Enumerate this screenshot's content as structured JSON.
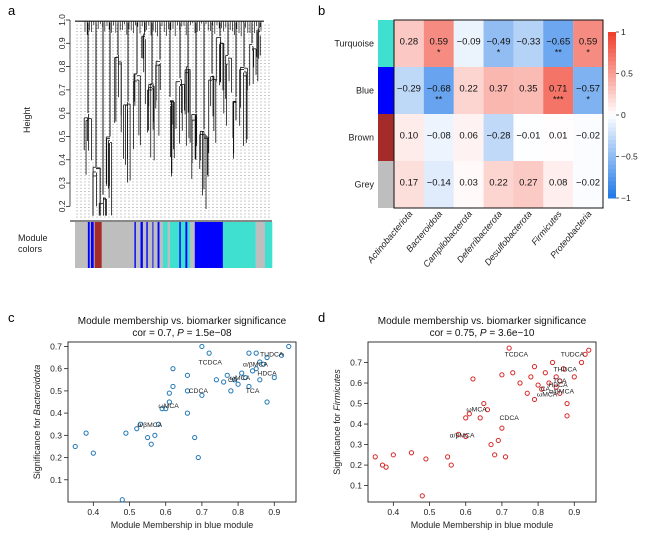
{
  "panel_labels": {
    "a": "a",
    "b": "b",
    "c": "c",
    "d": "d"
  },
  "colors": {
    "turquoise": "#40e0d0",
    "blue": "#0000ff",
    "brown": "#a52a2a",
    "grey": "#bebebe",
    "scatter_c": "#1f77b4",
    "scatter_d": "#d62728",
    "heat_neg": "#1f78e6",
    "heat_pos": "#f03c2a"
  },
  "panel_a": {
    "ylabel": "Height",
    "yticks": [
      "1.0",
      "0.9",
      "0.8",
      "0.7",
      "0.6",
      "0.5",
      "0.4",
      "0.3",
      "0.2"
    ],
    "module_label_line1": "Module",
    "module_label_line2": "colors",
    "module_bar": [
      {
        "color": "grey",
        "w": 0.055
      },
      {
        "color": "blue",
        "w": 0.008
      },
      {
        "color": "grey",
        "w": 0.005
      },
      {
        "color": "blue",
        "w": 0.012
      },
      {
        "color": "grey",
        "w": 0.004
      },
      {
        "color": "brown",
        "w": 0.03
      },
      {
        "color": "grey",
        "w": 0.14
      },
      {
        "color": "blue",
        "w": 0.006
      },
      {
        "color": "grey",
        "w": 0.02
      },
      {
        "color": "blue",
        "w": 0.01
      },
      {
        "color": "grey",
        "w": 0.015
      },
      {
        "color": "blue",
        "w": 0.006
      },
      {
        "color": "grey",
        "w": 0.02
      },
      {
        "color": "blue",
        "w": 0.004
      },
      {
        "color": "grey",
        "w": 0.018
      },
      {
        "color": "blue",
        "w": 0.008
      },
      {
        "color": "grey",
        "w": 0.015
      },
      {
        "color": "turquoise",
        "w": 0.02
      },
      {
        "color": "grey",
        "w": 0.01
      },
      {
        "color": "turquoise",
        "w": 0.04
      },
      {
        "color": "blue",
        "w": 0.006
      },
      {
        "color": "turquoise",
        "w": 0.02
      },
      {
        "color": "blue",
        "w": 0.008
      },
      {
        "color": "turquoise",
        "w": 0.012
      },
      {
        "color": "grey",
        "w": 0.02
      },
      {
        "color": "blue",
        "w": 0.12
      },
      {
        "color": "turquoise",
        "w": 0.14
      },
      {
        "color": "grey",
        "w": 0.04
      },
      {
        "color": "turquoise",
        "w": 0.03
      }
    ]
  },
  "chart_data": [
    {
      "type": "heatmap",
      "panel": "b",
      "rows": [
        "Turquoise",
        "Blue",
        "Brown",
        "Grey"
      ],
      "row_colors": [
        "turquoise",
        "blue",
        "brown",
        "grey"
      ],
      "columns": [
        "Actinobacteriota",
        "Bacteroidota",
        "Campilobacterota",
        "Deferribacterota",
        "Desulfobacterota",
        "Firmicutes",
        "Proteobacteria"
      ],
      "values": [
        [
          0.28,
          0.59,
          -0.09,
          -0.49,
          -0.33,
          -0.65,
          0.59
        ],
        [
          -0.29,
          -0.68,
          0.22,
          0.37,
          0.35,
          0.71,
          -0.57
        ],
        [
          0.1,
          -0.08,
          0.06,
          -0.28,
          -0.01,
          0.01,
          -0.02
        ],
        [
          0.17,
          -0.14,
          0.03,
          0.22,
          0.27,
          0.08,
          -0.02
        ]
      ],
      "labels": [
        [
          "0.28",
          "0.59",
          "−0.09",
          "−0.49",
          "−0.33",
          "−0.65",
          "0.59"
        ],
        [
          "−0.29",
          "−0.68",
          "0.22",
          "0.37",
          "0.35",
          "0.71",
          "−0.57"
        ],
        [
          "0.10",
          "−0.08",
          "0.06",
          "−0.28",
          "−0.01",
          "0.01",
          "−0.02"
        ],
        [
          "0.17",
          "−0.14",
          "0.03",
          "0.22",
          "0.27",
          "0.08",
          "−0.02"
        ]
      ],
      "stars": [
        [
          "",
          "*",
          "",
          "*",
          "",
          "**",
          "*"
        ],
        [
          "",
          "**",
          "",
          "",
          "",
          "***",
          "*"
        ],
        [
          "",
          "",
          "",
          "",
          "",
          "",
          ""
        ],
        [
          "",
          "",
          "",
          "",
          "",
          "",
          ""
        ]
      ],
      "colorbar": {
        "min": -1,
        "max": 1,
        "ticks": [
          "1",
          "0.5",
          "0",
          "−0.5",
          "−1"
        ]
      }
    },
    {
      "type": "scatter",
      "panel": "c",
      "title": "Module membership vs. biomarker significance",
      "subtitle_prefix": "cor = 0.7, ",
      "subtitle_p": "P",
      "subtitle_suffix": " = 1.5e−08",
      "xlabel": "Module Membership in blue module",
      "ylabel_prefix": "Significance for ",
      "ylabel_italic": "Bacteroidota",
      "xlim": [
        0.33,
        0.96
      ],
      "ylim": [
        0,
        0.72
      ],
      "xticks": [
        0.4,
        0.5,
        0.6,
        0.7,
        0.8,
        0.9
      ],
      "yticks": [
        0.1,
        0.2,
        0.3,
        0.4,
        0.5,
        0.6,
        0.7
      ],
      "points": [
        [
          0.35,
          0.25
        ],
        [
          0.38,
          0.31
        ],
        [
          0.4,
          0.22
        ],
        [
          0.48,
          0.01
        ],
        [
          0.49,
          0.31
        ],
        [
          0.52,
          0.33
        ],
        [
          0.53,
          0.35
        ],
        [
          0.55,
          0.29
        ],
        [
          0.56,
          0.26
        ],
        [
          0.57,
          0.3
        ],
        [
          0.58,
          0.35
        ],
        [
          0.59,
          0.42
        ],
        [
          0.6,
          0.42
        ],
        [
          0.61,
          0.45
        ],
        [
          0.61,
          0.49
        ],
        [
          0.62,
          0.6
        ],
        [
          0.66,
          0.57
        ],
        [
          0.66,
          0.4
        ],
        [
          0.68,
          0.29
        ],
        [
          0.69,
          0.2
        ],
        [
          0.7,
          0.7
        ],
        [
          0.7,
          0.48
        ],
        [
          0.72,
          0.67
        ],
        [
          0.74,
          0.55
        ],
        [
          0.76,
          0.54
        ],
        [
          0.77,
          0.57
        ],
        [
          0.78,
          0.5
        ],
        [
          0.79,
          0.55
        ],
        [
          0.8,
          0.53
        ],
        [
          0.81,
          0.58
        ],
        [
          0.82,
          0.56
        ],
        [
          0.83,
          0.52
        ],
        [
          0.83,
          0.67
        ],
        [
          0.84,
          0.59
        ],
        [
          0.85,
          0.67
        ],
        [
          0.85,
          0.6
        ],
        [
          0.86,
          0.63
        ],
        [
          0.86,
          0.55
        ],
        [
          0.87,
          0.62
        ],
        [
          0.88,
          0.65
        ],
        [
          0.88,
          0.45
        ],
        [
          0.9,
          0.56
        ],
        [
          0.92,
          0.66
        ],
        [
          0.94,
          0.7
        ],
        [
          0.66,
          0.5
        ],
        [
          0.62,
          0.52
        ]
      ],
      "annotations": [
        {
          "text": "TUDCA",
          "x": 0.893,
          "y": 0.655
        },
        {
          "text": "TCDCA",
          "x": 0.723,
          "y": 0.618
        },
        {
          "text": "α/βMCA",
          "x": 0.848,
          "y": 0.61
        },
        {
          "text": "HDCA",
          "x": 0.88,
          "y": 0.57
        },
        {
          "text": "ωMCA",
          "x": 0.805,
          "y": 0.548
        },
        {
          "text": "CA",
          "x": 0.785,
          "y": 0.54
        },
        {
          "text": "CDCA",
          "x": 0.69,
          "y": 0.49
        },
        {
          "text": "TCA",
          "x": 0.84,
          "y": 0.49
        },
        {
          "text": "ωMCA",
          "x": 0.608,
          "y": 0.424
        },
        {
          "text": "α/βMCA",
          "x": 0.556,
          "y": 0.338
        }
      ]
    },
    {
      "type": "scatter",
      "panel": "d",
      "title": "Module membership vs. biomarker significance",
      "subtitle_prefix": "cor = 0.75, ",
      "subtitle_p": "P",
      "subtitle_suffix": " = 3.6e−10",
      "xlabel": "Module Membership in blue module",
      "ylabel_prefix": "Significance for ",
      "ylabel_italic": "Firmicutes",
      "xlim": [
        0.33,
        0.96
      ],
      "ylim": [
        0.02,
        0.8
      ],
      "xticks": [
        0.4,
        0.5,
        0.6,
        0.7,
        0.8,
        0.9
      ],
      "yticks": [
        0.1,
        0.2,
        0.3,
        0.4,
        0.5,
        0.6,
        0.7
      ],
      "points": [
        [
          0.35,
          0.24
        ],
        [
          0.37,
          0.2
        ],
        [
          0.38,
          0.19
        ],
        [
          0.4,
          0.25
        ],
        [
          0.45,
          0.26
        ],
        [
          0.48,
          0.05
        ],
        [
          0.49,
          0.23
        ],
        [
          0.55,
          0.24
        ],
        [
          0.56,
          0.2
        ],
        [
          0.58,
          0.35
        ],
        [
          0.6,
          0.34
        ],
        [
          0.6,
          0.43
        ],
        [
          0.61,
          0.45
        ],
        [
          0.62,
          0.62
        ],
        [
          0.64,
          0.43
        ],
        [
          0.65,
          0.5
        ],
        [
          0.66,
          0.47
        ],
        [
          0.68,
          0.25
        ],
        [
          0.69,
          0.32
        ],
        [
          0.7,
          0.64
        ],
        [
          0.7,
          0.38
        ],
        [
          0.71,
          0.24
        ],
        [
          0.72,
          0.77
        ],
        [
          0.75,
          0.6
        ],
        [
          0.77,
          0.55
        ],
        [
          0.78,
          0.63
        ],
        [
          0.79,
          0.52
        ],
        [
          0.8,
          0.59
        ],
        [
          0.81,
          0.57
        ],
        [
          0.82,
          0.65
        ],
        [
          0.83,
          0.6
        ],
        [
          0.84,
          0.7
        ],
        [
          0.85,
          0.63
        ],
        [
          0.85,
          0.58
        ],
        [
          0.86,
          0.61
        ],
        [
          0.86,
          0.55
        ],
        [
          0.87,
          0.67
        ],
        [
          0.88,
          0.5
        ],
        [
          0.88,
          0.44
        ],
        [
          0.9,
          0.63
        ],
        [
          0.92,
          0.7
        ],
        [
          0.93,
          0.74
        ],
        [
          0.94,
          0.76
        ],
        [
          0.67,
          0.3
        ],
        [
          0.73,
          0.65
        ],
        [
          0.79,
          0.68
        ]
      ],
      "annotations": [
        {
          "text": "TCDCA",
          "x": 0.74,
          "y": 0.73
        },
        {
          "text": "TUDCA",
          "x": 0.895,
          "y": 0.73
        },
        {
          "text": "THDCA",
          "x": 0.875,
          "y": 0.655
        },
        {
          "text": "TCA",
          "x": 0.86,
          "y": 0.6
        },
        {
          "text": "HDCA",
          "x": 0.855,
          "y": 0.58
        },
        {
          "text": "α/βMCA",
          "x": 0.865,
          "y": 0.55
        },
        {
          "text": "CA",
          "x": 0.82,
          "y": 0.56
        },
        {
          "text": "ωMCA",
          "x": 0.825,
          "y": 0.535
        },
        {
          "text": "ωMCA",
          "x": 0.63,
          "y": 0.46
        },
        {
          "text": "CDCA",
          "x": 0.72,
          "y": 0.42
        },
        {
          "text": "α/βMCA",
          "x": 0.59,
          "y": 0.335
        }
      ]
    }
  ]
}
